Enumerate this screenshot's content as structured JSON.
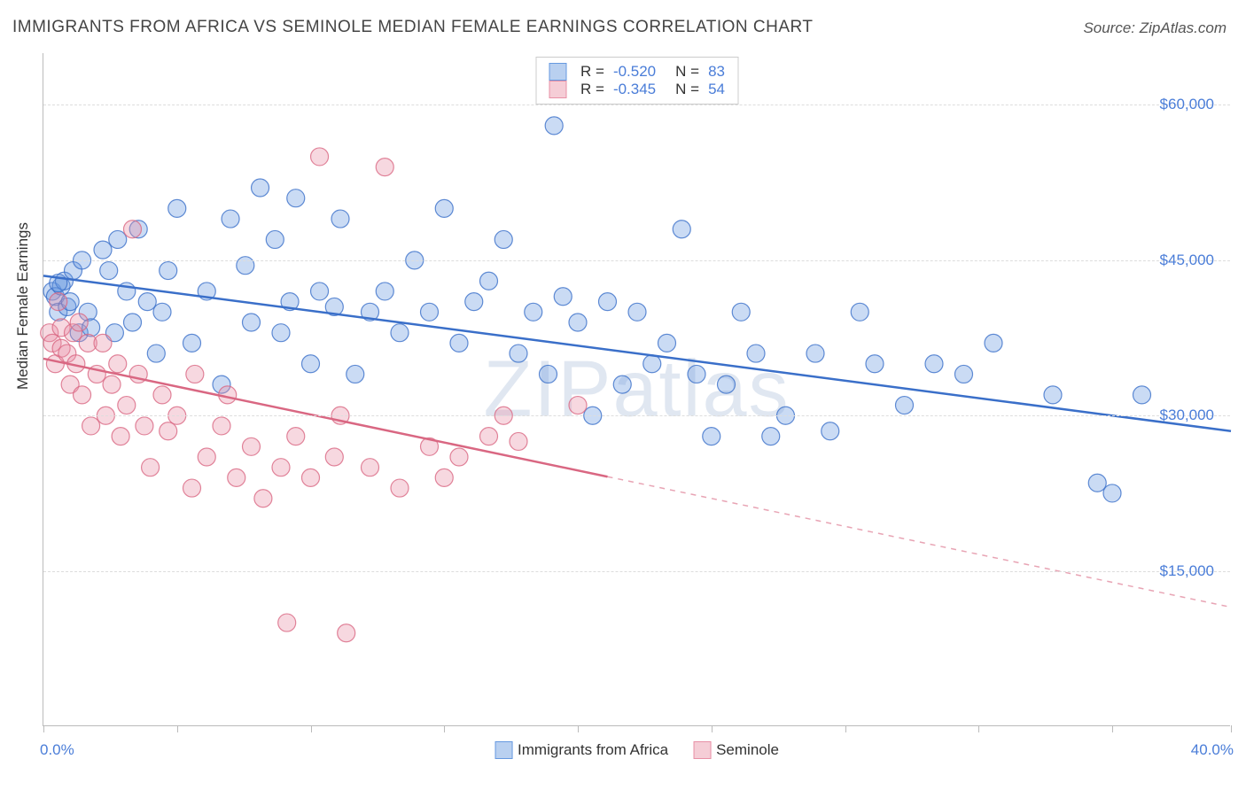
{
  "title": "IMMIGRANTS FROM AFRICA VS SEMINOLE MEDIAN FEMALE EARNINGS CORRELATION CHART",
  "source": "Source: ZipAtlas.com",
  "watermark": "ZIPatlas",
  "yaxis_title": "Median Female Earnings",
  "chart": {
    "type": "scatter",
    "xlim": [
      0,
      40
    ],
    "ylim": [
      0,
      65000
    ],
    "x_tick_positions": [
      0,
      4.5,
      9,
      13.5,
      18,
      22.5,
      27,
      31.5,
      36,
      40
    ],
    "x_labels": {
      "start": "0.0%",
      "end": "40.0%"
    },
    "y_gridlines": [
      15000,
      30000,
      45000,
      60000
    ],
    "y_tick_labels": [
      "$15,000",
      "$30,000",
      "$45,000",
      "$60,000"
    ],
    "background_color": "#ffffff",
    "grid_color": "#dddddd",
    "grid_dash": "4,4",
    "axis_color": "#bbbbbb",
    "label_color": "#4a7dd8",
    "title_fontsize": 19,
    "label_fontsize": 17,
    "marker_radius": 10,
    "marker_opacity": 0.35,
    "marker_stroke_opacity": 0.8,
    "line_width": 2.5
  },
  "series": [
    {
      "name": "Immigrants from Africa",
      "color": "#6699e0",
      "stroke": "#3a6fc9",
      "fill": "rgba(102,153,224,0.35)",
      "swatch_fill": "#b9d0f0",
      "swatch_border": "#6699e0",
      "R": "-0.520",
      "N": "83",
      "trend": {
        "x1": 0,
        "y1": 43500,
        "x2": 40,
        "y2": 28500,
        "solid_until": 40,
        "dash": false
      },
      "points": [
        [
          0.3,
          42000
        ],
        [
          0.4,
          41500
        ],
        [
          0.5,
          40000
        ],
        [
          0.6,
          42500
        ],
        [
          0.7,
          43000
        ],
        [
          0.8,
          40500
        ],
        [
          0.9,
          41000
        ],
        [
          1.0,
          44000
        ],
        [
          0.5,
          42800
        ],
        [
          1.2,
          38000
        ],
        [
          1.3,
          45000
        ],
        [
          1.5,
          40000
        ],
        [
          1.6,
          38500
        ],
        [
          2.0,
          46000
        ],
        [
          2.2,
          44000
        ],
        [
          2.4,
          38000
        ],
        [
          2.5,
          47000
        ],
        [
          3.0,
          39000
        ],
        [
          3.2,
          48000
        ],
        [
          3.5,
          41000
        ],
        [
          3.8,
          36000
        ],
        [
          4.0,
          40000
        ],
        [
          4.2,
          44000
        ],
        [
          4.5,
          50000
        ],
        [
          5.0,
          37000
        ],
        [
          5.5,
          42000
        ],
        [
          6.0,
          33000
        ],
        [
          6.3,
          49000
        ],
        [
          7.0,
          39000
        ],
        [
          7.3,
          52000
        ],
        [
          7.8,
          47000
        ],
        [
          8.0,
          38000
        ],
        [
          8.3,
          41000
        ],
        [
          8.5,
          51000
        ],
        [
          9.0,
          35000
        ],
        [
          9.3,
          42000
        ],
        [
          9.8,
          40500
        ],
        [
          10.0,
          49000
        ],
        [
          10.5,
          34000
        ],
        [
          11.0,
          40000
        ],
        [
          11.5,
          42000
        ],
        [
          12.0,
          38000
        ],
        [
          12.5,
          45000
        ],
        [
          13.0,
          40000
        ],
        [
          13.5,
          50000
        ],
        [
          14.0,
          37000
        ],
        [
          14.5,
          41000
        ],
        [
          15.0,
          43000
        ],
        [
          15.5,
          47000
        ],
        [
          16.0,
          36000
        ],
        [
          16.5,
          40000
        ],
        [
          17.0,
          34000
        ],
        [
          17.2,
          58000
        ],
        [
          17.5,
          41500
        ],
        [
          18.0,
          39000
        ],
        [
          18.5,
          30000
        ],
        [
          19.0,
          41000
        ],
        [
          19.5,
          33000
        ],
        [
          20.0,
          40000
        ],
        [
          20.5,
          35000
        ],
        [
          21.0,
          37000
        ],
        [
          21.5,
          48000
        ],
        [
          22.0,
          34000
        ],
        [
          22.5,
          28000
        ],
        [
          23.0,
          33000
        ],
        [
          23.5,
          40000
        ],
        [
          24.0,
          36000
        ],
        [
          24.5,
          28000
        ],
        [
          25.0,
          30000
        ],
        [
          26.0,
          36000
        ],
        [
          26.5,
          28500
        ],
        [
          27.5,
          40000
        ],
        [
          28.0,
          35000
        ],
        [
          29.0,
          31000
        ],
        [
          30.0,
          35000
        ],
        [
          31.0,
          34000
        ],
        [
          32.0,
          37000
        ],
        [
          34.0,
          32000
        ],
        [
          35.5,
          23500
        ],
        [
          36.0,
          22500
        ],
        [
          37.0,
          32000
        ],
        [
          2.8,
          42000
        ],
        [
          6.8,
          44500
        ]
      ]
    },
    {
      "name": "Seminole",
      "color": "#e890a6",
      "stroke": "#d96782",
      "fill": "rgba(232,144,166,0.35)",
      "swatch_fill": "#f5cdd6",
      "swatch_border": "#e890a6",
      "R": "-0.345",
      "N": "54",
      "trend": {
        "x1": 0,
        "y1": 35500,
        "x2": 40,
        "y2": 11500,
        "solid_until": 19,
        "dash": true
      },
      "points": [
        [
          0.2,
          38000
        ],
        [
          0.3,
          37000
        ],
        [
          0.4,
          35000
        ],
        [
          0.5,
          41000
        ],
        [
          0.6,
          36500
        ],
        [
          0.6,
          38500
        ],
        [
          0.8,
          36000
        ],
        [
          0.9,
          33000
        ],
        [
          1.0,
          38000
        ],
        [
          1.1,
          35000
        ],
        [
          1.2,
          39000
        ],
        [
          1.3,
          32000
        ],
        [
          1.5,
          37000
        ],
        [
          1.6,
          29000
        ],
        [
          1.8,
          34000
        ],
        [
          2.0,
          37000
        ],
        [
          2.1,
          30000
        ],
        [
          2.3,
          33000
        ],
        [
          2.5,
          35000
        ],
        [
          2.6,
          28000
        ],
        [
          2.8,
          31000
        ],
        [
          3.0,
          48000
        ],
        [
          3.2,
          34000
        ],
        [
          3.4,
          29000
        ],
        [
          3.6,
          25000
        ],
        [
          4.0,
          32000
        ],
        [
          4.2,
          28500
        ],
        [
          4.5,
          30000
        ],
        [
          5.0,
          23000
        ],
        [
          5.1,
          34000
        ],
        [
          5.5,
          26000
        ],
        [
          6.0,
          29000
        ],
        [
          6.2,
          32000
        ],
        [
          6.5,
          24000
        ],
        [
          7.0,
          27000
        ],
        [
          7.4,
          22000
        ],
        [
          8.0,
          25000
        ],
        [
          8.2,
          10000
        ],
        [
          8.5,
          28000
        ],
        [
          9.0,
          24000
        ],
        [
          9.3,
          55000
        ],
        [
          9.8,
          26000
        ],
        [
          10.0,
          30000
        ],
        [
          10.2,
          9000
        ],
        [
          11.0,
          25000
        ],
        [
          12.0,
          23000
        ],
        [
          13.0,
          27000
        ],
        [
          13.5,
          24000
        ],
        [
          14.0,
          26000
        ],
        [
          15.0,
          28000
        ],
        [
          15.5,
          30000
        ],
        [
          16.0,
          27500
        ],
        [
          18.0,
          31000
        ],
        [
          11.5,
          54000
        ]
      ]
    }
  ],
  "legend_bottom": [
    {
      "label": "Immigrants from Africa",
      "fill": "#b9d0f0",
      "border": "#6699e0"
    },
    {
      "label": "Seminole",
      "fill": "#f5cdd6",
      "border": "#e890a6"
    }
  ]
}
